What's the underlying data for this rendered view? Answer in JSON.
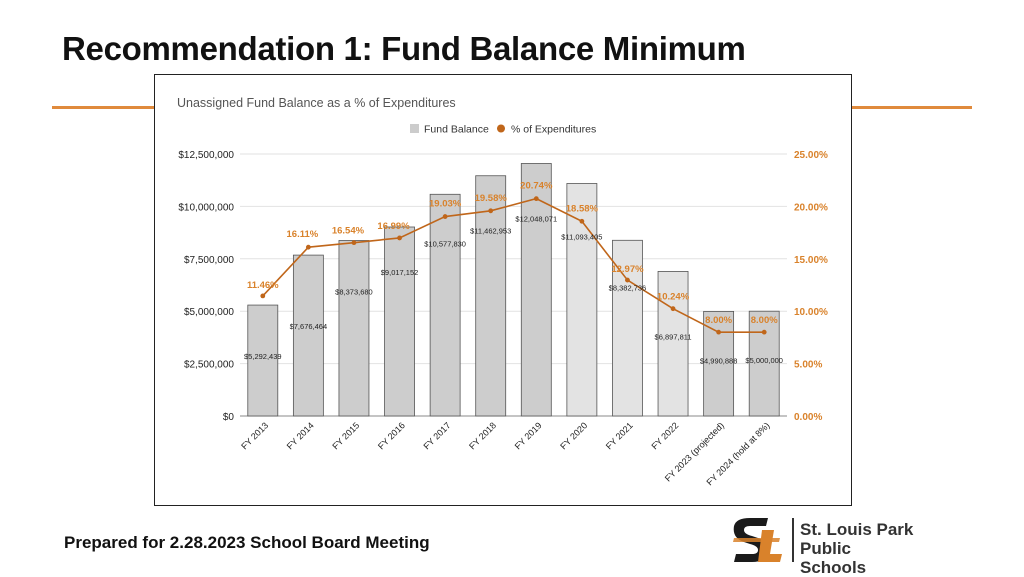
{
  "slide": {
    "title": "Recommendation 1: Fund Balance Minimum",
    "footer": "Prepared for 2.28.2023  School Board Meeting",
    "logo_line1": "St. Louis Park",
    "logo_line2": "Public Schools",
    "accent_color": "#e08a3c"
  },
  "chart_data": {
    "type": "bar",
    "title": "Unassigned Fund Balance as a % of Expenditures",
    "categories": [
      "FY 2013",
      "FY 2014",
      "FY 2015",
      "FY 2016",
      "FY 2017",
      "FY 2018",
      "FY 2019",
      "FY 2020",
      "FY 2021",
      "FY 2022",
      "FY 2023 (projected)",
      "FY 2024 (hold at 8%)"
    ],
    "series": [
      {
        "name": "Fund Balance",
        "type": "bar",
        "axis": "left",
        "color": "#cccccc",
        "values": [
          5292439,
          7676464,
          8373680,
          9017152,
          10577830,
          11462953,
          12048071,
          11093405,
          8382736,
          6897811,
          4990888,
          5000000
        ],
        "labels": [
          "$5,292,439",
          "$7,676,464",
          "$8,373,680",
          "$9,017,152",
          "$10,577,830",
          "$11,462,953",
          "$12,048,071",
          "$11,093,405",
          "$8,382,736",
          "$6,897,811",
          "$4,990,888",
          "$5,000,000"
        ]
      },
      {
        "name": "% of Expenditures",
        "type": "line",
        "axis": "right",
        "color": "#c0661a",
        "values": [
          11.46,
          16.11,
          16.54,
          16.99,
          19.03,
          19.58,
          20.74,
          18.58,
          12.97,
          10.24,
          8.0,
          8.0
        ],
        "labels": [
          "11.46%",
          "16.11%",
          "16.54%",
          "16.99%",
          "19.03%",
          "19.58%",
          "20.74%",
          "18.58%",
          "12.97%",
          "10.24%",
          "8.00%",
          "8.00%"
        ]
      }
    ],
    "y_left": {
      "min": 0,
      "max": 12500000,
      "ticks": [
        0,
        2500000,
        5000000,
        7500000,
        10000000,
        12500000
      ],
      "tick_labels": [
        "$0",
        "$2,500,000",
        "$5,000,000",
        "$7,500,000",
        "$10,000,000",
        "$12,500,000"
      ]
    },
    "y_right": {
      "min": 0,
      "max": 25,
      "ticks": [
        0,
        5,
        10,
        15,
        20,
        25
      ],
      "tick_labels": [
        "0.00%",
        "5.00%",
        "10.00%",
        "15.00%",
        "20.00%",
        "25.00%"
      ]
    },
    "grid": true,
    "legend": "top-center"
  }
}
